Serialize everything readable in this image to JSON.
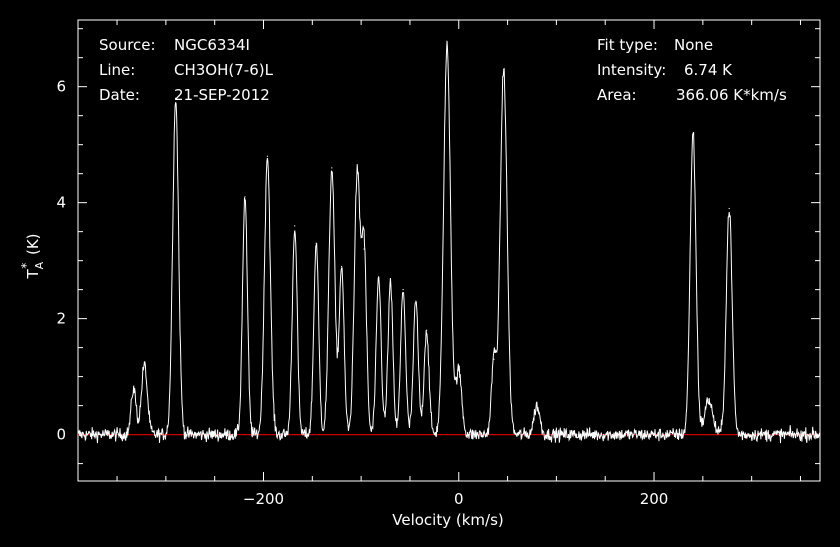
{
  "header": {
    "left": [
      {
        "label": "Source:",
        "value": "NGC6334I"
      },
      {
        "label": "Line:",
        "value": "CH3OH(7-6)L"
      },
      {
        "label": "Date:",
        "value": "21-SEP-2012"
      }
    ],
    "right": [
      {
        "label": "Fit type:",
        "value": "None"
      },
      {
        "label": "Intensity:",
        "value": "6.74 K"
      },
      {
        "label": "Area:",
        "value": "366.06 K*km/s"
      }
    ]
  },
  "chart_data": {
    "type": "line",
    "title": "",
    "xlabel": "Velocity (km/s)",
    "ylabel": "T_A^* (K)",
    "xlim": [
      -390,
      370
    ],
    "ylim": [
      -0.8,
      7.15
    ],
    "x_ticks": [
      -200,
      0,
      200
    ],
    "x_tick_labels": [
      "−200",
      "0",
      "200"
    ],
    "y_ticks": [
      0,
      2,
      4,
      6
    ],
    "y_tick_labels": [
      "0",
      "2",
      "4",
      "6"
    ],
    "baseline": 0,
    "colors": {
      "background": "#000000",
      "trace": "#ffffff",
      "baseline": "#cc0000",
      "axes": "#ffffff"
    },
    "noise_rms": 0.08,
    "peaks": [
      {
        "v": -333,
        "height": 0.8,
        "width": 2.5
      },
      {
        "v": -322,
        "height": 1.2,
        "width": 3
      },
      {
        "v": -290,
        "height": 5.8,
        "width": 3
      },
      {
        "v": -219,
        "height": 4.1,
        "width": 2.5
      },
      {
        "v": -196,
        "height": 4.8,
        "width": 3
      },
      {
        "v": -168,
        "height": 3.6,
        "width": 2.5
      },
      {
        "v": -146,
        "height": 3.3,
        "width": 2.5
      },
      {
        "v": -130,
        "height": 4.6,
        "width": 3
      },
      {
        "v": -120,
        "height": 2.9,
        "width": 2.5
      },
      {
        "v": -104,
        "height": 4.5,
        "width": 3
      },
      {
        "v": -97,
        "height": 3.2,
        "width": 2.5
      },
      {
        "v": -82,
        "height": 2.7,
        "width": 2.5
      },
      {
        "v": -70,
        "height": 2.6,
        "width": 2.5
      },
      {
        "v": -57,
        "height": 2.5,
        "width": 2.5
      },
      {
        "v": -44,
        "height": 2.3,
        "width": 2.5
      },
      {
        "v": -33,
        "height": 1.8,
        "width": 2.5
      },
      {
        "v": -12,
        "height": 6.7,
        "width": 3.5
      },
      {
        "v": 0,
        "height": 1.1,
        "width": 3
      },
      {
        "v": 36,
        "height": 1.3,
        "width": 2.5
      },
      {
        "v": 46,
        "height": 6.3,
        "width": 3.5
      },
      {
        "v": 80,
        "height": 0.5,
        "width": 3
      },
      {
        "v": 240,
        "height": 5.2,
        "width": 3
      },
      {
        "v": 256,
        "height": 0.6,
        "width": 4
      },
      {
        "v": 277,
        "height": 3.9,
        "width": 3
      }
    ]
  }
}
